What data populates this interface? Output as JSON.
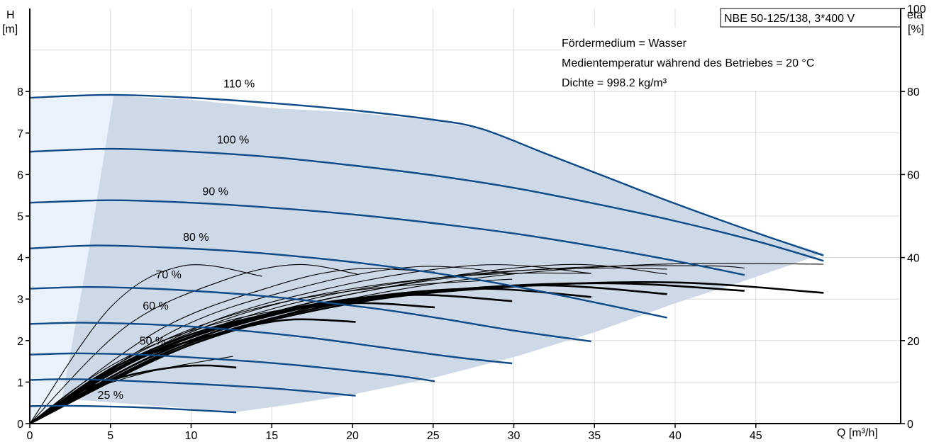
{
  "chart_data": {
    "type": "line",
    "title": "NBE 50-125/138, 3*400 V",
    "xlabel": "Q [m³/h]",
    "ylabel_left": "H",
    "ylabel_left_unit": "[m]",
    "ylabel_right": "eta",
    "ylabel_right_unit": "[%]",
    "xlim": [
      0,
      50
    ],
    "ylim": [
      0,
      10
    ],
    "eta_lim": [
      0,
      100
    ],
    "x_ticks": [
      "0",
      "5",
      "10",
      "15",
      "20",
      "25",
      "30",
      "35",
      "40",
      "45"
    ],
    "y_ticks": [
      "0",
      "1",
      "2",
      "3",
      "4",
      "5",
      "6",
      "7",
      "8"
    ],
    "eta_ticks": [
      "0",
      "20",
      "40",
      "60",
      "80",
      "100"
    ],
    "info_lines": [
      "Fördermedium = Wasser",
      "Medientemperatur während des Betriebes = 20 °C",
      "Dichte = 998.2 kg/m³"
    ],
    "grid": true,
    "colors": {
      "head_curve": "#0d4a87",
      "efficiency_curve": "#000000",
      "operating_area": "#cdd9e6",
      "low_flow_area": "#e9f2fb"
    },
    "operating_area": [
      {
        "x": 5.2,
        "y": 7.9
      },
      {
        "x": 10,
        "y": 7.8
      },
      {
        "x": 15,
        "y": 7.6
      },
      {
        "x": 20,
        "y": 7.5
      },
      {
        "x": 25,
        "y": 7.3
      },
      {
        "x": 28,
        "y": 7.1
      },
      {
        "x": 32,
        "y": 6.5
      },
      {
        "x": 36,
        "y": 5.9
      },
      {
        "x": 40,
        "y": 5.3
      },
      {
        "x": 45,
        "y": 4.6
      },
      {
        "x": 49.2,
        "y": 4.1
      },
      {
        "x": 47,
        "y": 3.8
      },
      {
        "x": 44,
        "y": 3.4
      },
      {
        "x": 40,
        "y": 2.9
      },
      {
        "x": 35,
        "y": 2.2
      },
      {
        "x": 30,
        "y": 1.6
      },
      {
        "x": 25,
        "y": 1.1
      },
      {
        "x": 20,
        "y": 0.7
      },
      {
        "x": 16,
        "y": 0.45
      },
      {
        "x": 12.8,
        "y": 0.28
      },
      {
        "x": 2,
        "y": 0.6
      },
      {
        "x": 3.5,
        "y": 3.8
      }
    ],
    "low_flow_area": [
      {
        "x": 0,
        "y": 7.8
      },
      {
        "x": 5.2,
        "y": 7.9
      },
      {
        "x": 3.5,
        "y": 3.8
      },
      {
        "x": 2,
        "y": 0.6
      },
      {
        "x": 0,
        "y": 0
      }
    ],
    "series": [
      {
        "name": "110 %",
        "label_at": {
          "x": 12,
          "y": 8.1
        },
        "curve": {
          "x": [
            0,
            5,
            10,
            15,
            20,
            25,
            28,
            32,
            36,
            40,
            45,
            49.2
          ],
          "y": [
            7.85,
            7.92,
            7.85,
            7.72,
            7.55,
            7.32,
            7.1,
            6.5,
            5.9,
            5.3,
            4.6,
            4.05
          ]
        }
      },
      {
        "name": "100 %",
        "label_at": {
          "x": 11.6,
          "y": 6.75
        },
        "curve": {
          "x": [
            0,
            5,
            10,
            15,
            20,
            25,
            30,
            35,
            40,
            45,
            49.2
          ],
          "y": [
            6.55,
            6.62,
            6.55,
            6.42,
            6.22,
            5.98,
            5.68,
            5.3,
            4.88,
            4.4,
            3.92
          ]
        }
      },
      {
        "name": "90 %",
        "label_at": {
          "x": 10.7,
          "y": 5.5
        },
        "curve": {
          "x": [
            0,
            5,
            10,
            15,
            20,
            25,
            30,
            35,
            40,
            44.3
          ],
          "y": [
            5.32,
            5.38,
            5.32,
            5.2,
            5.04,
            4.83,
            4.58,
            4.27,
            3.92,
            3.58
          ]
        }
      },
      {
        "name": "80 %",
        "label_at": {
          "x": 9.5,
          "y": 4.4
        },
        "curve": {
          "x": [
            0,
            4,
            8,
            12,
            16,
            20,
            24,
            28,
            32,
            36,
            39.5
          ],
          "y": [
            4.22,
            4.29,
            4.25,
            4.17,
            4.05,
            3.89,
            3.69,
            3.45,
            3.16,
            2.84,
            2.55
          ]
        }
      },
      {
        "name": "70 %",
        "label_at": {
          "x": 7.8,
          "y": 3.5
        },
        "curve": {
          "x": [
            0,
            3.5,
            7,
            10,
            14,
            18,
            22,
            26,
            30,
            34.8
          ],
          "y": [
            3.25,
            3.29,
            3.26,
            3.2,
            3.09,
            2.93,
            2.74,
            2.5,
            2.24,
            1.98
          ]
        }
      },
      {
        "name": "60 %",
        "label_at": {
          "x": 7.0,
          "y": 2.75
        },
        "curve": {
          "x": [
            0,
            3,
            6,
            9,
            12,
            15,
            18,
            21,
            24,
            27,
            29.9
          ],
          "y": [
            2.4,
            2.43,
            2.41,
            2.36,
            2.28,
            2.17,
            2.04,
            1.88,
            1.72,
            1.57,
            1.45
          ]
        }
      },
      {
        "name": "50 %",
        "label_at": {
          "x": 6.8,
          "y": 1.9
        },
        "curve": {
          "x": [
            0,
            2.5,
            5,
            8,
            11,
            14,
            17,
            20,
            23,
            25.1
          ],
          "y": [
            1.66,
            1.69,
            1.68,
            1.64,
            1.57,
            1.49,
            1.39,
            1.27,
            1.14,
            1.02
          ]
        }
      },
      {
        "name": "",
        "label_at": null,
        "curve": {
          "x": [
            0,
            2,
            4,
            6,
            9,
            12,
            15,
            18,
            20.2
          ],
          "y": [
            1.05,
            1.07,
            1.06,
            1.03,
            0.98,
            0.92,
            0.85,
            0.75,
            0.67
          ]
        }
      },
      {
        "name": "25 %",
        "label_at": {
          "x": 4.2,
          "y": 0.6
        },
        "curve": {
          "x": [
            0,
            2,
            4,
            6,
            8,
            10,
            12.8
          ],
          "y": [
            0.42,
            0.43,
            0.42,
            0.4,
            0.37,
            0.33,
            0.27
          ]
        }
      }
    ],
    "efficiency_curves_thin": [
      {
        "x": [
          0,
          2,
          4,
          6,
          8,
          10,
          12.6
        ],
        "y": [
          0,
          0.5,
          0.85,
          1.1,
          1.3,
          1.45,
          1.62
        ]
      },
      {
        "x": [
          0,
          3,
          6,
          9,
          12,
          15,
          20.2
        ],
        "y": [
          0,
          0.9,
          1.6,
          2.1,
          2.45,
          2.7,
          3.0
        ]
      },
      {
        "x": [
          0,
          4,
          8,
          12,
          16,
          20,
          24,
          29.9
        ],
        "y": [
          0,
          1.1,
          1.95,
          2.55,
          2.95,
          3.2,
          3.35,
          3.48
        ]
      },
      {
        "x": [
          0,
          5,
          10,
          15,
          20,
          25,
          30,
          34.8
        ],
        "y": [
          0,
          1.25,
          2.2,
          2.85,
          3.25,
          3.5,
          3.62,
          3.62
        ]
      },
      {
        "x": [
          0,
          6,
          12,
          18,
          24,
          30,
          36,
          39.5
        ],
        "y": [
          0,
          1.4,
          2.4,
          3.05,
          3.45,
          3.68,
          3.75,
          3.72
        ]
      },
      {
        "x": [
          0,
          7,
          14,
          21,
          28,
          35,
          42,
          44.3
        ],
        "y": [
          0,
          1.5,
          2.55,
          3.2,
          3.6,
          3.78,
          3.8,
          3.75
        ]
      },
      {
        "x": [
          0,
          8,
          16,
          24,
          32,
          40,
          49.2
        ],
        "y": [
          0,
          1.6,
          2.65,
          3.3,
          3.68,
          3.85,
          3.84
        ]
      },
      {
        "x": [
          0,
          5,
          9.5,
          14.4
        ],
        "y": [
          0,
          2.8,
          3.8,
          3.55
        ]
      },
      {
        "x": [
          0,
          6,
          12,
          16.5,
          20.3
        ],
        "y": [
          0,
          2.35,
          3.45,
          3.83,
          3.6
        ]
      },
      {
        "x": [
          0,
          8,
          15,
          20,
          25.1
        ],
        "y": [
          0,
          2.25,
          3.3,
          3.72,
          3.65
        ]
      },
      {
        "x": [
          0,
          9,
          17,
          24,
          29.9
        ],
        "y": [
          0,
          2.25,
          3.3,
          3.78,
          3.62
        ]
      },
      {
        "x": [
          0,
          10,
          19,
          28,
          34.8
        ],
        "y": [
          0,
          2.25,
          3.3,
          3.82,
          3.62
        ]
      },
      {
        "x": [
          0,
          12,
          23,
          33,
          39.5
        ],
        "y": [
          0,
          2.3,
          3.35,
          3.83,
          3.6
        ]
      }
    ],
    "efficiency_curves_thick": [
      {
        "x": [
          0,
          3,
          6,
          9,
          11,
          12.8
        ],
        "y": [
          0,
          0.75,
          1.15,
          1.36,
          1.4,
          1.35
        ]
      },
      {
        "x": [
          0,
          4,
          8,
          12,
          16,
          20.2
        ],
        "y": [
          0,
          1.05,
          1.75,
          2.2,
          2.5,
          2.45
        ]
      },
      {
        "x": [
          0,
          5,
          10,
          15,
          20,
          25.1
        ],
        "y": [
          0,
          1.3,
          2.15,
          2.65,
          2.9,
          2.8
        ]
      },
      {
        "x": [
          0,
          6,
          12,
          18,
          24,
          29.9
        ],
        "y": [
          0,
          1.45,
          2.35,
          2.9,
          3.1,
          2.95
        ]
      },
      {
        "x": [
          0,
          7,
          14,
          21,
          28,
          34.8
        ],
        "y": [
          0,
          1.6,
          2.55,
          3.05,
          3.25,
          3.05
        ]
      },
      {
        "x": [
          0,
          8,
          16,
          24,
          32,
          39.5
        ],
        "y": [
          0,
          1.7,
          2.7,
          3.15,
          3.33,
          3.12
        ]
      },
      {
        "x": [
          0,
          9,
          18,
          27,
          36,
          44.3
        ],
        "y": [
          0,
          1.8,
          2.8,
          3.25,
          3.38,
          3.2
        ]
      },
      {
        "x": [
          0,
          10,
          20,
          30,
          40,
          49.2
        ],
        "y": [
          0,
          1.9,
          2.9,
          3.3,
          3.4,
          3.15
        ]
      }
    ]
  }
}
